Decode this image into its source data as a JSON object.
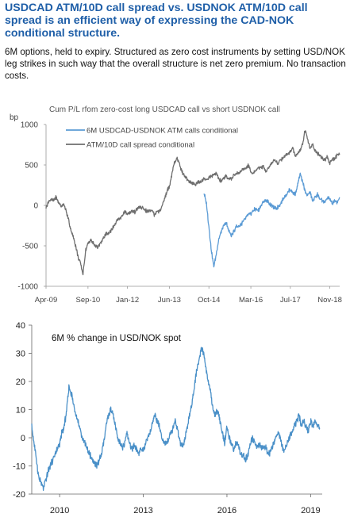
{
  "header": {
    "title": "USDCAD ATM/10D call spread vs. USDNOK ATM/10D call spread is an efficient way of expressing the CAD-NOK conditional structure.",
    "subtitle": "6M options, held to expiry. Structured as zero cost instruments by setting USD/NOK leg strikes in such way that the overall structure is net zero premium. No transaction costs."
  },
  "chart_data": [
    {
      "type": "line",
      "title": "Cum P/L rfom zero-cost long USDCAD call vs short USDNOK call",
      "ylabel": "bp",
      "xlabel": "",
      "ylim": [
        -1000,
        1000
      ],
      "yticks": [
        "1000",
        "500",
        "0",
        "-500",
        "-1000"
      ],
      "xticks": [
        "Apr-09",
        "Sep-10",
        "Jan-12",
        "Jun-13",
        "Oct-14",
        "Mar-16",
        "Jul-17",
        "Nov-18"
      ],
      "x_range": [
        "Apr-09",
        "Mar-19"
      ],
      "legend_position": "top-center",
      "grid": false,
      "colors": {
        "series1": "#5b9bd5",
        "series2": "#6e6e6e"
      },
      "series": [
        {
          "name": "6M USDCAD-USDNOK ATM calls conditional",
          "color": "#5b9bd5",
          "x": [
            "2014-08",
            "2014-09",
            "2014-10",
            "2014-11",
            "2014-12",
            "2015-01",
            "2015-02",
            "2015-03",
            "2015-04",
            "2015-05",
            "2015-06",
            "2015-07",
            "2015-08",
            "2015-09",
            "2015-10",
            "2015-11",
            "2015-12",
            "2016-01",
            "2016-02",
            "2016-03",
            "2016-04",
            "2016-05",
            "2016-06",
            "2016-07",
            "2016-08",
            "2016-09",
            "2016-10",
            "2016-11",
            "2016-12",
            "2017-01",
            "2017-02",
            "2017-03",
            "2017-04",
            "2017-05",
            "2017-06",
            "2017-07",
            "2017-08",
            "2017-09",
            "2017-10",
            "2017-11",
            "2017-12",
            "2018-01",
            "2018-02",
            "2018-03",
            "2018-04",
            "2018-05",
            "2018-06",
            "2018-07",
            "2018-08",
            "2018-09",
            "2018-10",
            "2018-11",
            "2018-12",
            "2019-01",
            "2019-02",
            "2019-03"
          ],
          "values": [
            160,
            20,
            -260,
            -560,
            -760,
            -600,
            -420,
            -330,
            -260,
            -220,
            -300,
            -380,
            -330,
            -260,
            -260,
            -230,
            -200,
            -150,
            -120,
            -100,
            -60,
            -50,
            -60,
            -10,
            40,
            60,
            40,
            10,
            -20,
            -40,
            -20,
            20,
            80,
            120,
            160,
            200,
            160,
            140,
            260,
            390,
            290,
            180,
            120,
            170,
            60,
            100,
            140,
            80,
            60,
            40,
            90,
            80,
            20,
            50,
            40,
            100
          ]
        },
        {
          "name": "ATM/10D call spread conditional",
          "color": "#6e6e6e",
          "x": [
            "2009-04",
            "2009-05",
            "2009-06",
            "2009-07",
            "2009-08",
            "2009-09",
            "2009-10",
            "2009-11",
            "2009-12",
            "2010-01",
            "2010-02",
            "2010-03",
            "2010-04",
            "2010-05",
            "2010-06",
            "2010-07",
            "2010-08",
            "2010-09",
            "2010-10",
            "2010-11",
            "2010-12",
            "2011-01",
            "2011-02",
            "2011-03",
            "2011-04",
            "2011-05",
            "2011-06",
            "2011-07",
            "2011-08",
            "2011-09",
            "2011-10",
            "2011-11",
            "2011-12",
            "2012-01",
            "2012-02",
            "2012-03",
            "2012-04",
            "2012-05",
            "2012-06",
            "2012-07",
            "2012-08",
            "2012-09",
            "2012-10",
            "2012-11",
            "2012-12",
            "2013-01",
            "2013-02",
            "2013-03",
            "2013-04",
            "2013-05",
            "2013-06",
            "2013-07",
            "2013-08",
            "2013-09",
            "2013-10",
            "2013-11",
            "2013-12",
            "2014-01",
            "2014-02",
            "2014-03",
            "2014-04",
            "2014-05",
            "2014-06",
            "2014-07",
            "2014-08",
            "2014-09",
            "2014-10",
            "2014-11",
            "2014-12",
            "2015-01",
            "2015-02",
            "2015-03",
            "2015-04",
            "2015-05",
            "2015-06",
            "2015-07",
            "2015-08",
            "2015-09",
            "2015-10",
            "2015-11",
            "2015-12",
            "2016-01",
            "2016-02",
            "2016-03",
            "2016-04",
            "2016-05",
            "2016-06",
            "2016-07",
            "2016-08",
            "2016-09",
            "2016-10",
            "2016-11",
            "2016-12",
            "2017-01",
            "2017-02",
            "2017-03",
            "2017-04",
            "2017-05",
            "2017-06",
            "2017-07",
            "2017-08",
            "2017-09",
            "2017-10",
            "2017-11",
            "2017-12",
            "2018-01",
            "2018-02",
            "2018-03",
            "2018-04",
            "2018-05",
            "2018-06",
            "2018-07",
            "2018-08",
            "2018-09",
            "2018-10",
            "2018-11",
            "2018-12",
            "2019-01",
            "2019-02",
            "2019-03"
          ],
          "values": [
            -20,
            40,
            80,
            60,
            100,
            40,
            -10,
            20,
            -60,
            -160,
            -300,
            -380,
            -500,
            -640,
            -720,
            -860,
            -560,
            -480,
            -430,
            -460,
            -500,
            -520,
            -470,
            -420,
            -360,
            -350,
            -320,
            -280,
            -230,
            -180,
            -160,
            -120,
            -80,
            -100,
            -90,
            -70,
            -80,
            -40,
            -20,
            -30,
            -50,
            -80,
            -60,
            -50,
            -120,
            -60,
            -80,
            -10,
            80,
            170,
            240,
            380,
            520,
            580,
            520,
            420,
            370,
            330,
            300,
            280,
            260,
            270,
            290,
            300,
            330,
            320,
            340,
            360,
            380,
            390,
            330,
            300,
            340,
            360,
            320,
            330,
            370,
            390,
            400,
            430,
            440,
            460,
            500,
            420,
            400,
            430,
            460,
            470,
            480,
            420,
            460,
            510,
            540,
            560,
            520,
            560,
            590,
            620,
            640,
            660,
            720,
            600,
            640,
            680,
            760,
            940,
            820,
            700,
            760,
            680,
            640,
            620,
            580,
            560,
            600,
            520,
            580,
            570,
            620,
            640
          ]
        }
      ]
    },
    {
      "type": "line",
      "title": "6M % change in USD/NOK spot",
      "ylabel": "",
      "xlabel": "",
      "ylim": [
        -20,
        40
      ],
      "yticks": [
        "40",
        "30",
        "20",
        "10",
        "0",
        "-10",
        "-20"
      ],
      "xticks": [
        "2010",
        "2013",
        "2016",
        "2019"
      ],
      "x_range": [
        "2009-01",
        "2019-06"
      ],
      "grid": false,
      "colors": {
        "series1": "#4a90c8"
      },
      "series": [
        {
          "name": "",
          "color": "#4a90c8",
          "x": [
            "2009-01",
            "2009-02",
            "2009-03",
            "2009-04",
            "2009-05",
            "2009-06",
            "2009-07",
            "2009-08",
            "2009-09",
            "2009-10",
            "2009-11",
            "2009-12",
            "2010-01",
            "2010-02",
            "2010-03",
            "2010-04",
            "2010-05",
            "2010-06",
            "2010-07",
            "2010-08",
            "2010-09",
            "2010-10",
            "2010-11",
            "2010-12",
            "2011-01",
            "2011-02",
            "2011-03",
            "2011-04",
            "2011-05",
            "2011-06",
            "2011-07",
            "2011-08",
            "2011-09",
            "2011-10",
            "2011-11",
            "2011-12",
            "2012-01",
            "2012-02",
            "2012-03",
            "2012-04",
            "2012-05",
            "2012-06",
            "2012-07",
            "2012-08",
            "2012-09",
            "2012-10",
            "2012-11",
            "2012-12",
            "2013-01",
            "2013-02",
            "2013-03",
            "2013-04",
            "2013-05",
            "2013-06",
            "2013-07",
            "2013-08",
            "2013-09",
            "2013-10",
            "2013-11",
            "2013-12",
            "2014-01",
            "2014-02",
            "2014-03",
            "2014-04",
            "2014-05",
            "2014-06",
            "2014-07",
            "2014-08",
            "2014-09",
            "2014-10",
            "2014-11",
            "2014-12",
            "2015-01",
            "2015-02",
            "2015-03",
            "2015-04",
            "2015-05",
            "2015-06",
            "2015-07",
            "2015-08",
            "2015-09",
            "2015-10",
            "2015-11",
            "2015-12",
            "2016-01",
            "2016-02",
            "2016-03",
            "2016-04",
            "2016-05",
            "2016-06",
            "2016-07",
            "2016-08",
            "2016-09",
            "2016-10",
            "2016-11",
            "2016-12",
            "2017-01",
            "2017-02",
            "2017-03",
            "2017-04",
            "2017-05",
            "2017-06",
            "2017-07",
            "2017-08",
            "2017-09",
            "2017-10",
            "2017-11",
            "2017-12",
            "2018-01",
            "2018-02",
            "2018-03",
            "2018-04",
            "2018-05",
            "2018-06",
            "2018-07",
            "2018-08",
            "2018-09",
            "2018-10",
            "2018-11",
            "2018-12",
            "2019-01",
            "2019-02",
            "2019-03",
            "2019-04",
            "2019-05"
          ],
          "values": [
            4,
            -2,
            -8,
            -14,
            -16,
            -18,
            -15,
            -12,
            -10,
            -8,
            -6,
            -4,
            -2,
            2,
            4,
            10,
            18,
            16,
            12,
            8,
            6,
            2,
            0,
            -2,
            -4,
            -6,
            -8,
            -9,
            -10,
            -8,
            -6,
            -2,
            4,
            8,
            10,
            8,
            4,
            0,
            -2,
            -4,
            -2,
            2,
            -2,
            -4,
            -3,
            -4,
            -6,
            -4,
            -4,
            -2,
            0,
            2,
            6,
            8,
            6,
            4,
            0,
            -2,
            -2,
            0,
            2,
            4,
            6,
            2,
            -2,
            -3,
            0,
            4,
            8,
            12,
            18,
            24,
            28,
            32,
            30,
            24,
            20,
            16,
            10,
            8,
            10,
            6,
            2,
            -2,
            4,
            0,
            -2,
            -4,
            -2,
            -3,
            -6,
            -6,
            -8,
            -6,
            -2,
            0,
            -2,
            -4,
            -2,
            -4,
            -3,
            -4,
            -6,
            -4,
            -2,
            0,
            2,
            0,
            -4,
            -4,
            -2,
            0,
            2,
            4,
            6,
            8,
            4,
            6,
            4,
            2,
            6,
            4,
            6,
            4,
            3
          ]
        }
      ]
    }
  ]
}
